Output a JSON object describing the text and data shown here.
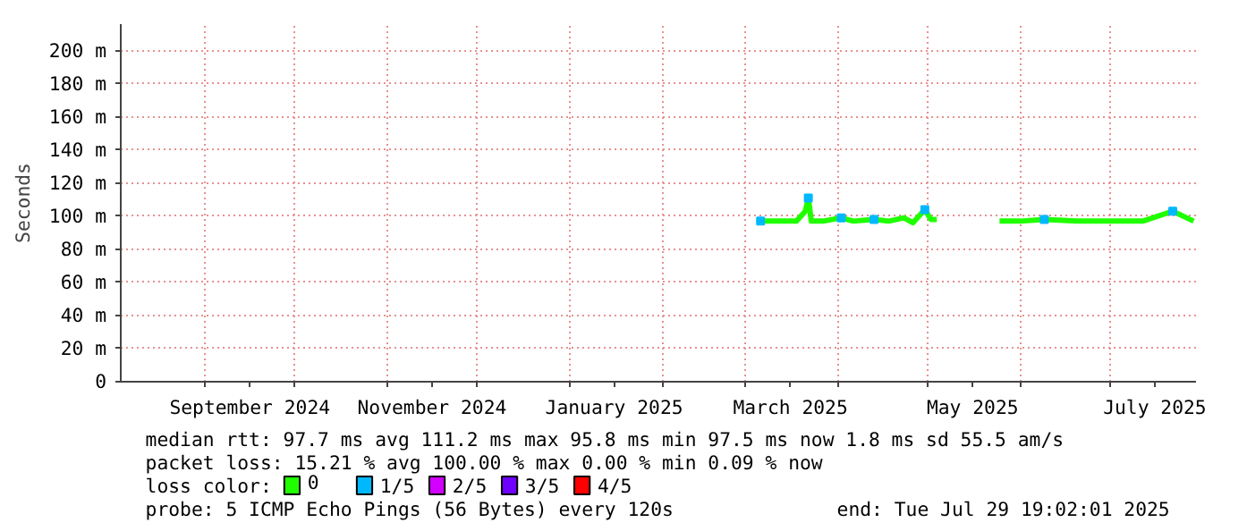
{
  "chart_data": {
    "type": "line",
    "ylabel": "Seconds",
    "legend_title": "loss color:",
    "xlim": [
      "2024-08-03T19:02",
      "2025-07-29T19:02"
    ],
    "xticks": [
      {
        "value": "2024-09-01",
        "label": null
      },
      {
        "value": "2024-09-16",
        "label": "September 2024"
      },
      {
        "value": "2024-10-01",
        "label": null
      },
      {
        "value": "2024-11-01",
        "label": null
      },
      {
        "value": "2024-11-16",
        "label": "November 2024"
      },
      {
        "value": "2024-12-01",
        "label": null
      },
      {
        "value": "2025-01-01",
        "label": null
      },
      {
        "value": "2025-01-16",
        "label": "January 2025"
      },
      {
        "value": "2025-02-01",
        "label": null
      },
      {
        "value": "2025-03-01",
        "label": null
      },
      {
        "value": "2025-03-16",
        "label": "March 2025"
      },
      {
        "value": "2025-04-01",
        "label": null
      },
      {
        "value": "2025-05-01",
        "label": null
      },
      {
        "value": "2025-05-16",
        "label": "May 2025"
      },
      {
        "value": "2025-06-01",
        "label": null
      },
      {
        "value": "2025-07-01",
        "label": null
      },
      {
        "value": "2025-07-16",
        "label": "July 2025"
      }
    ],
    "ylim": [
      0,
      216
    ],
    "yticks": [
      0,
      {
        "value": 20,
        "label": "20 m"
      },
      {
        "value": 40,
        "label": "40 m"
      },
      {
        "value": 60,
        "label": "60 m"
      },
      {
        "value": 80,
        "label": "80 m"
      },
      {
        "value": 100,
        "label": "100 m"
      },
      {
        "value": 120,
        "label": "120 m"
      },
      {
        "value": 140,
        "label": "140 m"
      },
      {
        "value": 160,
        "label": "160 m"
      },
      {
        "value": 180,
        "label": "180 m"
      },
      {
        "value": 200,
        "label": "200 m"
      }
    ],
    "grid": true,
    "legend": "bottom",
    "series": [
      {
        "name": "0",
        "color": "#20ff00",
        "x": [
          "2025-03-06",
          "2025-03-10",
          "2025-03-14",
          "2025-03-18",
          "2025-03-21",
          "2025-03-22",
          "2025-03-23",
          "2025-03-27",
          "2025-04-02",
          "2025-04-06",
          "2025-04-13",
          "2025-04-18",
          "2025-04-23",
          "2025-04-26",
          "2025-04-30",
          "2025-05-02",
          "2025-05-04",
          "2025-05-15",
          "2025-05-25",
          "2025-06-01",
          "2025-06-09",
          "2025-06-20",
          "2025-07-01",
          "2025-07-12",
          "2025-07-22",
          "2025-07-29"
        ],
        "values": [
          97,
          97,
          97,
          97,
          103,
          111,
          97,
          97,
          99,
          97,
          98,
          97,
          99,
          96,
          104,
          98,
          98,
          null,
          97,
          97,
          98,
          97,
          97,
          97,
          103,
          97
        ]
      },
      {
        "name": "1/5",
        "color": "#00b8ff",
        "type": "scatter",
        "x": [
          "2025-03-06",
          "2025-03-22",
          "2025-04-02",
          "2025-04-13",
          "2025-04-30",
          "2025-06-09",
          "2025-07-22"
        ],
        "values": [
          97,
          111,
          99,
          98,
          104,
          98,
          103
        ]
      },
      {
        "name": "2/5",
        "color": "#d100ff",
        "type": "scatter"
      },
      {
        "name": "3/5",
        "color": "#6f00ff",
        "type": "scatter"
      },
      {
        "name": "4/5",
        "color": "#ff0000",
        "type": "scatter"
      }
    ],
    "annotations": [
      "median rtt:  97.7 ms avg  111.2 ms max  95.8 ms min  97.5 ms now  1.8 ms sd  55.5   am/s",
      "packet loss: 15.21 % avg  100.00 % max  0.00 % min  0.09 % now",
      "probe:       5 ICMP Echo Pings (56 Bytes) every 120s",
      "end: Tue Jul 29 19:02:01 2025"
    ]
  }
}
